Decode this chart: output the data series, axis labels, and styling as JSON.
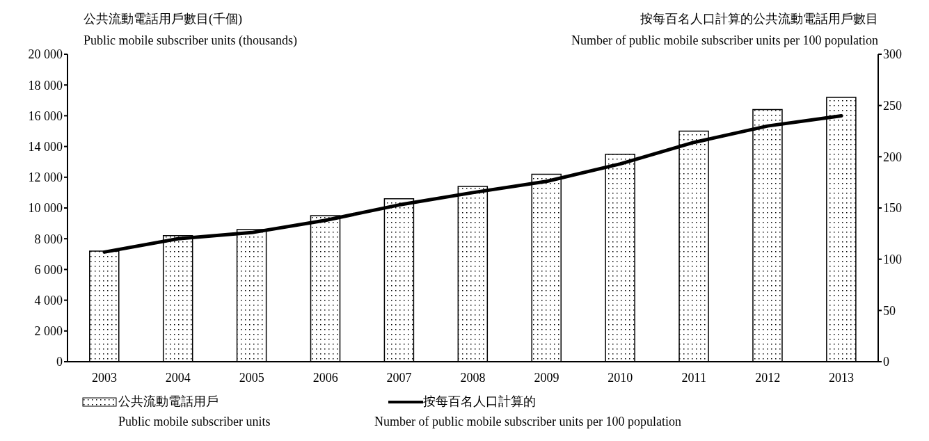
{
  "chart_data": {
    "type": "bar",
    "ylabel": "公共流動電話用戶數目(千個)\nPublic mobile subscriber units (thousands)",
    "y2label": "按每百名人口計算的公共流動電話用戶數目\nNumber of public mobile subscriber units per 100 population",
    "categories": [
      "2003",
      "2004",
      "2005",
      "2006",
      "2007",
      "2008",
      "2009",
      "2010",
      "2011",
      "2012",
      "2013"
    ],
    "series": [
      {
        "name": "公共流動電話用戶\nPublic mobile subscriber units",
        "color": "#000000",
        "values": [
          7200,
          8200,
          8600,
          9500,
          10600,
          11400,
          12200,
          13500,
          15000,
          16400,
          17200
        ]
      },
      {
        "name": "按每百名人口計算的\nNumber of public mobile subscriber units per 100 population",
        "type": "line",
        "axis": "y2",
        "color": "#000000",
        "values": [
          107,
          120,
          126,
          138,
          153,
          165,
          176,
          193,
          214,
          230,
          240
        ]
      }
    ],
    "ylim": [
      0,
      20000
    ],
    "yticks": [
      {
        "value": 0,
        "label": "0"
      },
      {
        "value": 2000,
        "label": "2 000"
      },
      {
        "value": 4000,
        "label": "4 000"
      },
      {
        "value": 6000,
        "label": "6 000"
      },
      {
        "value": 8000,
        "label": "8 000"
      },
      {
        "value": 10000,
        "label": "10 000"
      },
      {
        "value": 12000,
        "label": "12 000"
      },
      {
        "value": 14000,
        "label": "14 000"
      },
      {
        "value": 16000,
        "label": "16 000"
      },
      {
        "value": 18000,
        "label": "18 000"
      },
      {
        "value": 20000,
        "label": "20 000"
      }
    ],
    "y2lim": [
      0,
      300
    ],
    "y2ticks": [
      0,
      50,
      100,
      150,
      200,
      250,
      300
    ],
    "grid": false,
    "legend": "bottom",
    "marker": "none",
    "line_style": "solid"
  }
}
